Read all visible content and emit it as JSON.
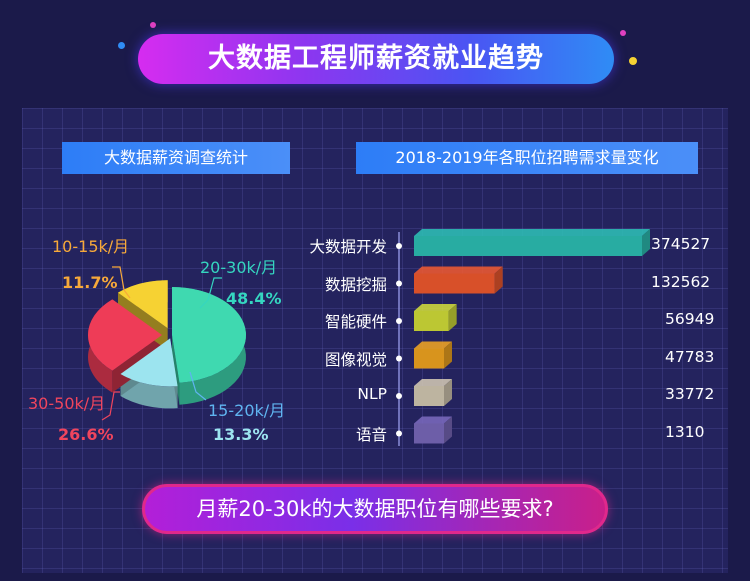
{
  "main_title": "大数据工程师薪资就业趋势",
  "left_subtitle": "大数据薪资调查统计",
  "right_subtitle": "2018-2019年各职位招聘需求量变化",
  "bottom_question": "月薪20-30k的大数据职位有哪些要求?",
  "colors": {
    "pie_20_30k": "#3fd9b0",
    "pie_15_20k": "#9ce4ef",
    "pie_30_50k": "#ee3c57",
    "pie_10_15k": "#f6d233",
    "label_teal": "#35d6c0",
    "label_orange": "#f7a93a",
    "label_red": "#f0455d",
    "bar_teal": "#2ec4b8",
    "bar_orange": "#f55b2f",
    "bar_yellow": "#d6e23a",
    "bar_amber": "#f6a821",
    "bar_beige": "#d7ccb6",
    "bar_purple": "#7c6bbf"
  },
  "chart_data": [
    {
      "type": "pie",
      "title": "大数据薪资调查统计",
      "slices": [
        {
          "label": "20-30k/月",
          "value": 48.4,
          "display": "48.4%"
        },
        {
          "label": "15-20k/月",
          "value": 13.3,
          "display": "13.3%"
        },
        {
          "label": "30-50k/月",
          "value": 26.6,
          "display": "26.6%"
        },
        {
          "label": "10-15k/月",
          "value": 11.7,
          "display": "11.7%"
        }
      ]
    },
    {
      "type": "bar",
      "orientation": "horizontal",
      "title": "2018-2019年各职位招聘需求量变化",
      "categories": [
        "大数据开发",
        "数据挖掘",
        "智能硬件",
        "图像视觉",
        "NLP",
        "语音"
      ],
      "values": [
        374527,
        132562,
        56949,
        47783,
        33772,
        1310
      ]
    }
  ]
}
